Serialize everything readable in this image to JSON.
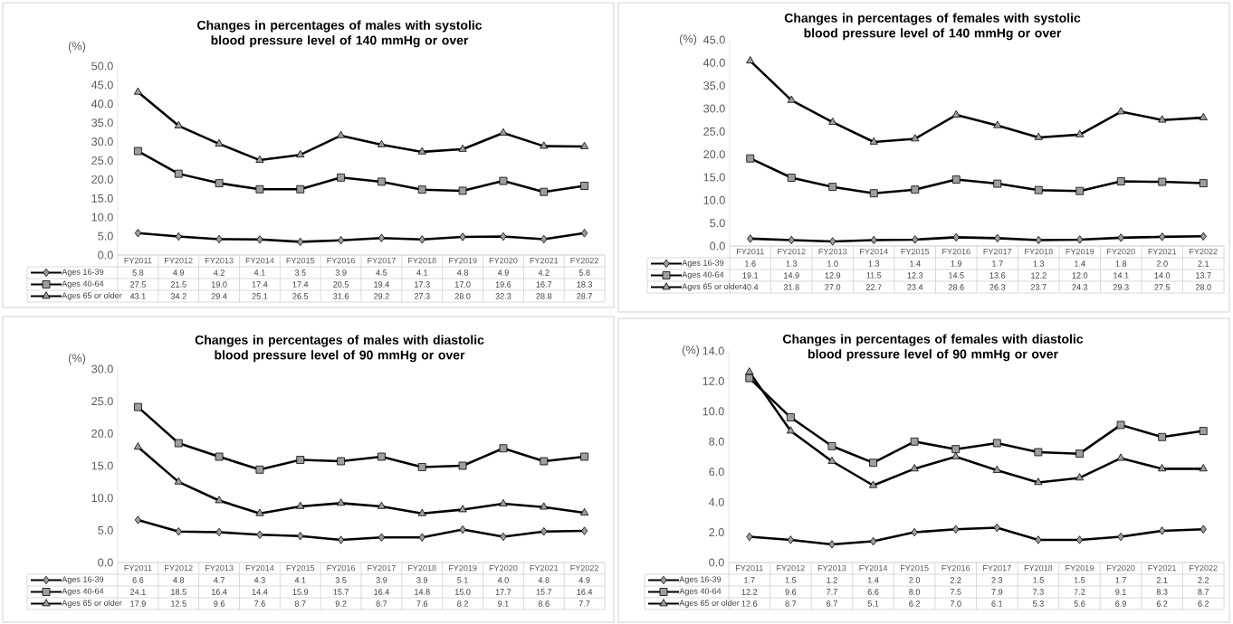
{
  "chart_data": [
    {
      "type": "line",
      "title": "Changes in percentages of males with systolic blood pressure level of 140 mmHg or over",
      "ylabel": "(%)",
      "categories": [
        "FY2011",
        "FY2012",
        "FY2013",
        "FY2014",
        "FY2015",
        "FY2016",
        "FY2017",
        "FY2018",
        "FY2019",
        "FY2020",
        "FY2021",
        "FY2022"
      ],
      "series": [
        {
          "name": "Ages 16-39",
          "color": "#000000",
          "marker": "diamond",
          "values": [
            5.8,
            4.9,
            4.2,
            4.1,
            3.5,
            3.9,
            4.5,
            4.1,
            4.8,
            4.9,
            4.2,
            5.8
          ],
          "value_labels": [
            "5.8",
            "4.9",
            "4.2",
            "4.1",
            "3.5",
            "3.9",
            "4.5",
            "4.1",
            "4.8",
            "4.9",
            "4.2",
            "5.8"
          ]
        },
        {
          "name": "Ages 40-64",
          "color": "#000000",
          "marker": "square",
          "values": [
            27.5,
            21.5,
            19.0,
            17.4,
            17.4,
            20.5,
            19.4,
            17.3,
            17.0,
            19.6,
            16.7,
            18.3
          ],
          "value_labels": [
            "27.5",
            "21.5",
            "19.0",
            "17.4",
            "17.4",
            "20.5",
            "19.4",
            "17.3",
            "17.0",
            "19.6",
            "16.7",
            "18.3"
          ]
        },
        {
          "name": "Ages 65 or older",
          "color": "#000000",
          "marker": "triangle",
          "values": [
            43.1,
            34.2,
            29.4,
            25.1,
            26.5,
            31.6,
            29.2,
            27.3,
            28.0,
            32.3,
            28.8,
            28.7
          ],
          "value_labels": [
            "43.1",
            "34.2",
            "29.4",
            "25.1",
            "26.5",
            "31.6",
            "29.2",
            "27.3",
            "28.0",
            "32.3",
            "28.8",
            "28.7"
          ]
        }
      ],
      "ylim": [
        0,
        50
      ],
      "yticks": [
        {
          "value": 0,
          "label": "0.0"
        },
        {
          "value": 5,
          "label": "5.0"
        },
        {
          "value": 10,
          "label": "10.0"
        },
        {
          "value": 15,
          "label": "15.0"
        },
        {
          "value": 20,
          "label": "20.0"
        },
        {
          "value": 25,
          "label": "25.0"
        },
        {
          "value": 30,
          "label": "30.0"
        },
        {
          "value": 35,
          "label": "35.0"
        },
        {
          "value": 40,
          "label": "40.0"
        },
        {
          "value": 45,
          "label": "45.0"
        },
        {
          "value": 50,
          "label": "50.0"
        }
      ],
      "legend": "bottom"
    },
    {
      "type": "line",
      "title": "Changes in percentages of females with systolic blood pressure level of 140 mmHg or over",
      "ylabel": "(%)",
      "categories": [
        "FY2011",
        "FY2012",
        "FY2013",
        "FY2014",
        "FY2015",
        "FY2016",
        "FY2017",
        "FY2018",
        "FY2019",
        "FY2020",
        "FY2021",
        "FY2022"
      ],
      "series": [
        {
          "name": "Ages 16-39",
          "color": "#000000",
          "marker": "diamond",
          "values": [
            1.6,
            1.3,
            1.0,
            1.3,
            1.4,
            1.9,
            1.7,
            1.3,
            1.4,
            1.8,
            2.0,
            2.1
          ],
          "value_labels": [
            "1.6",
            "1.3",
            "1.0",
            "1.3",
            "1.4",
            "1.9",
            "1.7",
            "1.3",
            "1.4",
            "1.8",
            "2.0",
            "2.1"
          ]
        },
        {
          "name": "Ages 40-64",
          "color": "#000000",
          "marker": "square",
          "values": [
            19.1,
            14.9,
            12.9,
            11.5,
            12.3,
            14.5,
            13.6,
            12.2,
            12.0,
            14.1,
            14.0,
            13.7
          ],
          "value_labels": [
            "19.1",
            "14.9",
            "12.9",
            "11.5",
            "12.3",
            "14.5",
            "13.6",
            "12.2",
            "12.0",
            "14.1",
            "14.0",
            "13.7"
          ]
        },
        {
          "name": "Ages 65 or older",
          "color": "#000000",
          "marker": "triangle",
          "values": [
            40.4,
            31.8,
            27.0,
            22.7,
            23.4,
            28.6,
            26.3,
            23.7,
            24.3,
            29.3,
            27.5,
            28.0
          ],
          "value_labels": [
            "40.4",
            "31.8",
            "27.0",
            "22.7",
            "23.4",
            "28.6",
            "26.3",
            "23.7",
            "24.3",
            "29.3",
            "27.5",
            "28.0"
          ]
        }
      ],
      "ylim": [
        0,
        45
      ],
      "yticks": [
        {
          "value": 0,
          "label": "0.0"
        },
        {
          "value": 5,
          "label": "5.0"
        },
        {
          "value": 10,
          "label": "10.0"
        },
        {
          "value": 15,
          "label": "15.0"
        },
        {
          "value": 20,
          "label": "20.0"
        },
        {
          "value": 25,
          "label": "25.0"
        },
        {
          "value": 30,
          "label": "30.0"
        },
        {
          "value": 35,
          "label": "35.0"
        },
        {
          "value": 40,
          "label": "40.0"
        },
        {
          "value": 45,
          "label": "45.0"
        }
      ],
      "legend": "bottom"
    },
    {
      "type": "line",
      "title": "Changes in percentages of males with diastolic blood pressure level of 90 mmHg or over",
      "ylabel": "(%)",
      "categories": [
        "FY2011",
        "FY2012",
        "FY2013",
        "FY2014",
        "FY2015",
        "FY2016",
        "FY2017",
        "FY2018",
        "FY2019",
        "FY2020",
        "FY2021",
        "FY2022"
      ],
      "series": [
        {
          "name": "Ages 16-39",
          "color": "#000000",
          "marker": "diamond",
          "values": [
            6.6,
            4.8,
            4.7,
            4.3,
            4.1,
            3.5,
            3.9,
            3.9,
            5.1,
            4.0,
            4.8,
            4.9
          ],
          "value_labels": [
            "6.6",
            "4.8",
            "4.7",
            "4.3",
            "4.1",
            "3.5",
            "3.9",
            "3.9",
            "5.1",
            "4.0",
            "4.8",
            "4.9"
          ]
        },
        {
          "name": "Ages 40-64",
          "color": "#000000",
          "marker": "square",
          "values": [
            24.1,
            18.5,
            16.4,
            14.4,
            15.9,
            15.7,
            16.4,
            14.8,
            15.0,
            17.7,
            15.7,
            16.4
          ],
          "value_labels": [
            "24.1",
            "18.5",
            "16.4",
            "14.4",
            "15.9",
            "15.7",
            "16.4",
            "14.8",
            "15.0",
            "17.7",
            "15.7",
            "16.4"
          ]
        },
        {
          "name": "Ages 65 or older",
          "color": "#000000",
          "marker": "triangle",
          "values": [
            17.9,
            12.5,
            9.6,
            7.6,
            8.7,
            9.2,
            8.7,
            7.6,
            8.2,
            9.1,
            8.6,
            7.7
          ],
          "value_labels": [
            "17.9",
            "12.5",
            "9.6",
            "7.6",
            "8.7",
            "9.2",
            "8.7",
            "7.6",
            "8.2",
            "9.1",
            "8.6",
            "7.7"
          ]
        }
      ],
      "ylim": [
        0,
        30
      ],
      "yticks": [
        {
          "value": 0,
          "label": "0.0"
        },
        {
          "value": 5,
          "label": "5.0"
        },
        {
          "value": 10,
          "label": "10.0"
        },
        {
          "value": 15,
          "label": "15.0"
        },
        {
          "value": 20,
          "label": "20.0"
        },
        {
          "value": 25,
          "label": "25.0"
        },
        {
          "value": 30,
          "label": "30.0"
        }
      ],
      "legend": "bottom"
    },
    {
      "type": "line",
      "title": "Changes in percentages of females with diastolic blood pressure level of 90 mmHg or over",
      "ylabel": "(%)",
      "categories": [
        "FY2011",
        "FY2012",
        "FY2013",
        "FY2014",
        "FY2015",
        "FY2016",
        "FY2017",
        "FY2018",
        "FY2019",
        "FY2020",
        "FY2021",
        "FY2022"
      ],
      "series": [
        {
          "name": "Ages 16-39",
          "color": "#000000",
          "marker": "diamond",
          "values": [
            1.7,
            1.5,
            1.2,
            1.4,
            2.0,
            2.2,
            2.3,
            1.5,
            1.5,
            1.7,
            2.1,
            2.2
          ],
          "value_labels": [
            "1.7",
            "1.5",
            "1.2",
            "1.4",
            "2.0",
            "2.2",
            "2.3",
            "1.5",
            "1.5",
            "1.7",
            "2.1",
            "2.2"
          ]
        },
        {
          "name": "Ages 40-64",
          "color": "#000000",
          "marker": "square",
          "values": [
            12.2,
            9.6,
            7.7,
            6.6,
            8.0,
            7.5,
            7.9,
            7.3,
            7.2,
            9.1,
            8.3,
            8.7
          ],
          "value_labels": [
            "12.2",
            "9.6",
            "7.7",
            "6.6",
            "8.0",
            "7.5",
            "7.9",
            "7.3",
            "7.2",
            "9.1",
            "8.3",
            "8.7"
          ]
        },
        {
          "name": "Ages 65 or older",
          "color": "#000000",
          "marker": "triangle",
          "values": [
            12.6,
            8.7,
            6.7,
            5.1,
            6.2,
            7.0,
            6.1,
            5.3,
            5.6,
            6.9,
            6.2,
            6.2
          ],
          "value_labels": [
            "12.6",
            "8.7",
            "6.7",
            "5.1",
            "6.2",
            "7.0",
            "6.1",
            "5.3",
            "5.6",
            "6.9",
            "6.2",
            "6.2"
          ]
        }
      ],
      "ylim": [
        0,
        14
      ],
      "yticks": [
        {
          "value": 0,
          "label": "0.0"
        },
        {
          "value": 2,
          "label": "2.0"
        },
        {
          "value": 4,
          "label": "4.0"
        },
        {
          "value": 6,
          "label": "6.0"
        },
        {
          "value": 8,
          "label": "8.0"
        },
        {
          "value": 10,
          "label": "10.0"
        },
        {
          "value": 12,
          "label": "12.0"
        },
        {
          "value": 14,
          "label": "14.0"
        }
      ],
      "legend": "bottom"
    }
  ]
}
